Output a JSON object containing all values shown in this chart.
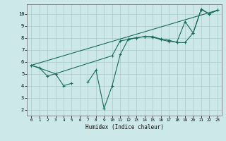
{
  "xlabel": "Humidex (Indice chaleur)",
  "bg_color": "#cce8e8",
  "grid_color": "#aacccc",
  "line_color": "#1a6b5a",
  "line1_x": [
    0,
    1,
    2,
    3,
    4,
    5,
    6,
    7,
    8,
    9,
    10,
    11,
    12,
    13,
    14,
    15,
    16,
    17,
    18,
    19,
    20,
    21,
    22,
    23
  ],
  "line1_y": [
    5.7,
    5.5,
    4.8,
    5.0,
    4.0,
    4.2,
    null,
    4.3,
    5.3,
    2.1,
    4.0,
    6.6,
    7.9,
    8.0,
    8.1,
    8.1,
    7.9,
    7.8,
    7.6,
    7.6,
    8.4,
    10.4,
    10.0,
    10.3
  ],
  "line2_x": [
    0,
    3,
    10,
    11,
    12,
    13,
    14,
    15,
    16,
    17,
    18,
    19,
    20,
    21,
    22,
    23
  ],
  "line2_y": [
    5.7,
    5.0,
    6.5,
    7.75,
    7.85,
    8.0,
    8.1,
    8.05,
    7.85,
    7.7,
    7.65,
    9.35,
    8.4,
    10.35,
    10.0,
    10.3
  ],
  "line3_x": [
    0,
    23
  ],
  "line3_y": [
    5.7,
    10.3
  ],
  "ylim": [
    1.5,
    10.8
  ],
  "xlim": [
    -0.5,
    23.5
  ],
  "yticks": [
    2,
    3,
    4,
    5,
    6,
    7,
    8,
    9,
    10
  ],
  "xticks": [
    0,
    1,
    2,
    3,
    4,
    5,
    6,
    7,
    8,
    9,
    10,
    11,
    12,
    13,
    14,
    15,
    16,
    17,
    18,
    19,
    20,
    21,
    22,
    23
  ]
}
